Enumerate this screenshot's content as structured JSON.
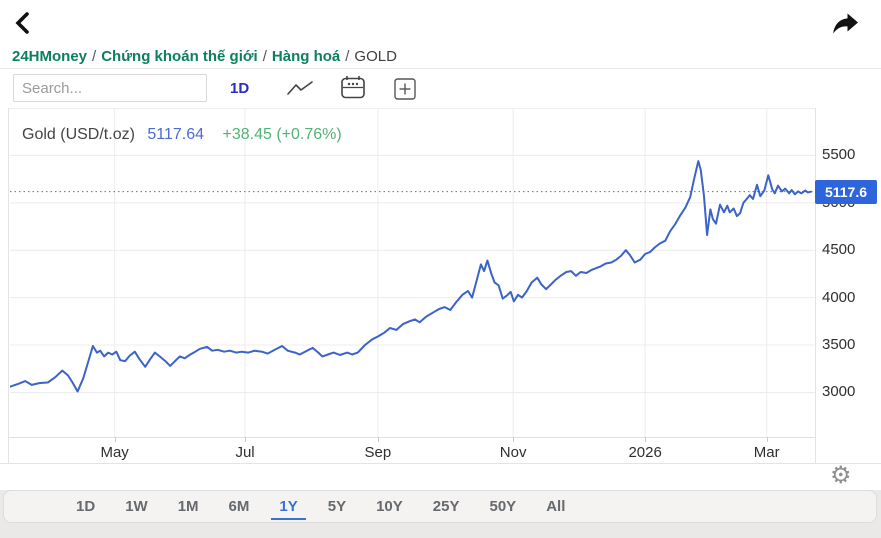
{
  "header": {
    "icons": {
      "back": "chevron-left",
      "share": "share-arrow"
    }
  },
  "breadcrumb": {
    "separator": "/",
    "items": [
      {
        "label": "24HMoney"
      },
      {
        "label": "Chứng khoán thế giới"
      },
      {
        "label": "Hàng hoá"
      },
      {
        "label": "GOLD"
      }
    ]
  },
  "toolbar": {
    "search_placeholder": "Search...",
    "interval_label": "1D",
    "icons": [
      "line-chart",
      "calendar",
      "plus-square"
    ]
  },
  "legend": {
    "name": "Gold (USD/t.oz)",
    "price": "5117.64",
    "change": "+38.45 (+0.76%)"
  },
  "last_price_badge": "5117.6",
  "settings_icon": "gear",
  "range_buttons": {
    "selected": "1Y",
    "options": [
      "1D",
      "1W",
      "1M",
      "6M",
      "1Y",
      "5Y",
      "10Y",
      "25Y",
      "50Y",
      "All"
    ]
  },
  "colors": {
    "line": "#3b63c8",
    "badge_blue": "#2e65dd",
    "price_text_blue": "#4a6bd4",
    "change_green": "#53b176",
    "breadcrumb_green": "#0c7f5f",
    "interval_blue": "#2a2dbe",
    "selected_range_blue": "#3a6fd4",
    "grid": "#ececec"
  },
  "chart_data": {
    "type": "line",
    "title": "Gold (USD/t.oz)",
    "last_price": 5117.6,
    "change": 38.45,
    "change_pct": 0.76,
    "grid": true,
    "x_axis": {
      "note": "positions are fractions of the 1Y time axis (Mar 2025 - Mar 2026)",
      "ticks": [
        {
          "label": "May",
          "pos": 0.13
        },
        {
          "label": "Jul",
          "pos": 0.292
        },
        {
          "label": "Sep",
          "pos": 0.457
        },
        {
          "label": "Nov",
          "pos": 0.625
        },
        {
          "label": "2026",
          "pos": 0.789
        },
        {
          "label": "Mar",
          "pos": 0.94
        }
      ]
    },
    "y_axis": {
      "min": 2530,
      "max": 6000,
      "ticks": [
        3000,
        3500,
        4000,
        4500,
        5000,
        5500
      ]
    },
    "last_price_line": 5117.6,
    "series": [
      {
        "name": "Gold",
        "color": "#3b63c8",
        "points": [
          [
            0.0,
            3060
          ],
          [
            0.01,
            3090
          ],
          [
            0.019,
            3120
          ],
          [
            0.027,
            3080
          ],
          [
            0.037,
            3100
          ],
          [
            0.047,
            3105
          ],
          [
            0.056,
            3160
          ],
          [
            0.065,
            3230
          ],
          [
            0.072,
            3180
          ],
          [
            0.078,
            3100
          ],
          [
            0.084,
            3010
          ],
          [
            0.091,
            3150
          ],
          [
            0.097,
            3320
          ],
          [
            0.103,
            3490
          ],
          [
            0.108,
            3420
          ],
          [
            0.112,
            3440
          ],
          [
            0.117,
            3380
          ],
          [
            0.122,
            3420
          ],
          [
            0.127,
            3400
          ],
          [
            0.132,
            3430
          ],
          [
            0.137,
            3340
          ],
          [
            0.143,
            3330
          ],
          [
            0.149,
            3390
          ],
          [
            0.155,
            3430
          ],
          [
            0.161,
            3350
          ],
          [
            0.168,
            3270
          ],
          [
            0.174,
            3350
          ],
          [
            0.18,
            3420
          ],
          [
            0.186,
            3380
          ],
          [
            0.193,
            3330
          ],
          [
            0.199,
            3280
          ],
          [
            0.205,
            3330
          ],
          [
            0.211,
            3380
          ],
          [
            0.217,
            3360
          ],
          [
            0.224,
            3400
          ],
          [
            0.23,
            3430
          ],
          [
            0.236,
            3460
          ],
          [
            0.245,
            3480
          ],
          [
            0.251,
            3440
          ],
          [
            0.258,
            3450
          ],
          [
            0.266,
            3430
          ],
          [
            0.273,
            3440
          ],
          [
            0.281,
            3420
          ],
          [
            0.288,
            3430
          ],
          [
            0.296,
            3420
          ],
          [
            0.304,
            3440
          ],
          [
            0.313,
            3430
          ],
          [
            0.32,
            3410
          ],
          [
            0.329,
            3450
          ],
          [
            0.338,
            3490
          ],
          [
            0.345,
            3440
          ],
          [
            0.354,
            3420
          ],
          [
            0.36,
            3400
          ],
          [
            0.369,
            3440
          ],
          [
            0.376,
            3470
          ],
          [
            0.383,
            3420
          ],
          [
            0.388,
            3380
          ],
          [
            0.395,
            3400
          ],
          [
            0.402,
            3420
          ],
          [
            0.41,
            3395
          ],
          [
            0.419,
            3420
          ],
          [
            0.425,
            3400
          ],
          [
            0.432,
            3420
          ],
          [
            0.441,
            3500
          ],
          [
            0.45,
            3560
          ],
          [
            0.457,
            3590
          ],
          [
            0.465,
            3630
          ],
          [
            0.472,
            3680
          ],
          [
            0.48,
            3660
          ],
          [
            0.488,
            3720
          ],
          [
            0.496,
            3750
          ],
          [
            0.503,
            3770
          ],
          [
            0.509,
            3740
          ],
          [
            0.517,
            3800
          ],
          [
            0.525,
            3840
          ],
          [
            0.533,
            3880
          ],
          [
            0.54,
            3900
          ],
          [
            0.547,
            3870
          ],
          [
            0.554,
            3950
          ],
          [
            0.562,
            4030
          ],
          [
            0.569,
            4070
          ],
          [
            0.574,
            4000
          ],
          [
            0.58,
            4190
          ],
          [
            0.585,
            4350
          ],
          [
            0.589,
            4280
          ],
          [
            0.593,
            4390
          ],
          [
            0.598,
            4250
          ],
          [
            0.602,
            4160
          ],
          [
            0.607,
            4130
          ],
          [
            0.612,
            3990
          ],
          [
            0.617,
            4020
          ],
          [
            0.622,
            4060
          ],
          [
            0.626,
            3960
          ],
          [
            0.631,
            4030
          ],
          [
            0.636,
            4000
          ],
          [
            0.642,
            4070
          ],
          [
            0.648,
            4160
          ],
          [
            0.655,
            4210
          ],
          [
            0.66,
            4140
          ],
          [
            0.666,
            4090
          ],
          [
            0.672,
            4140
          ],
          [
            0.678,
            4190
          ],
          [
            0.684,
            4230
          ],
          [
            0.691,
            4270
          ],
          [
            0.697,
            4280
          ],
          [
            0.703,
            4230
          ],
          [
            0.709,
            4270
          ],
          [
            0.716,
            4260
          ],
          [
            0.722,
            4290
          ],
          [
            0.728,
            4310
          ],
          [
            0.734,
            4330
          ],
          [
            0.74,
            4360
          ],
          [
            0.747,
            4370
          ],
          [
            0.753,
            4400
          ],
          [
            0.759,
            4440
          ],
          [
            0.765,
            4500
          ],
          [
            0.77,
            4450
          ],
          [
            0.776,
            4370
          ],
          [
            0.783,
            4400
          ],
          [
            0.789,
            4460
          ],
          [
            0.795,
            4480
          ],
          [
            0.801,
            4530
          ],
          [
            0.807,
            4570
          ],
          [
            0.814,
            4600
          ],
          [
            0.82,
            4700
          ],
          [
            0.826,
            4770
          ],
          [
            0.832,
            4860
          ],
          [
            0.839,
            4950
          ],
          [
            0.845,
            5060
          ],
          [
            0.85,
            5260
          ],
          [
            0.855,
            5440
          ],
          [
            0.858,
            5350
          ],
          [
            0.862,
            5080
          ],
          [
            0.866,
            4660
          ],
          [
            0.87,
            4930
          ],
          [
            0.873,
            4830
          ],
          [
            0.877,
            4780
          ],
          [
            0.882,
            4980
          ],
          [
            0.887,
            4900
          ],
          [
            0.891,
            4970
          ],
          [
            0.894,
            4900
          ],
          [
            0.899,
            4940
          ],
          [
            0.903,
            4860
          ],
          [
            0.907,
            4890
          ],
          [
            0.911,
            5000
          ],
          [
            0.916,
            5050
          ],
          [
            0.919,
            5080
          ],
          [
            0.923,
            5040
          ],
          [
            0.928,
            5190
          ],
          [
            0.932,
            5070
          ],
          [
            0.937,
            5130
          ],
          [
            0.942,
            5290
          ],
          [
            0.947,
            5140
          ],
          [
            0.95,
            5100
          ],
          [
            0.954,
            5180
          ],
          [
            0.959,
            5120
          ],
          [
            0.963,
            5150
          ],
          [
            0.968,
            5100
          ],
          [
            0.971,
            5135
          ],
          [
            0.975,
            5090
          ],
          [
            0.979,
            5120
          ],
          [
            0.983,
            5100
          ],
          [
            0.988,
            5130
          ],
          [
            0.991,
            5110
          ],
          [
            0.995,
            5117.6
          ]
        ]
      }
    ]
  }
}
